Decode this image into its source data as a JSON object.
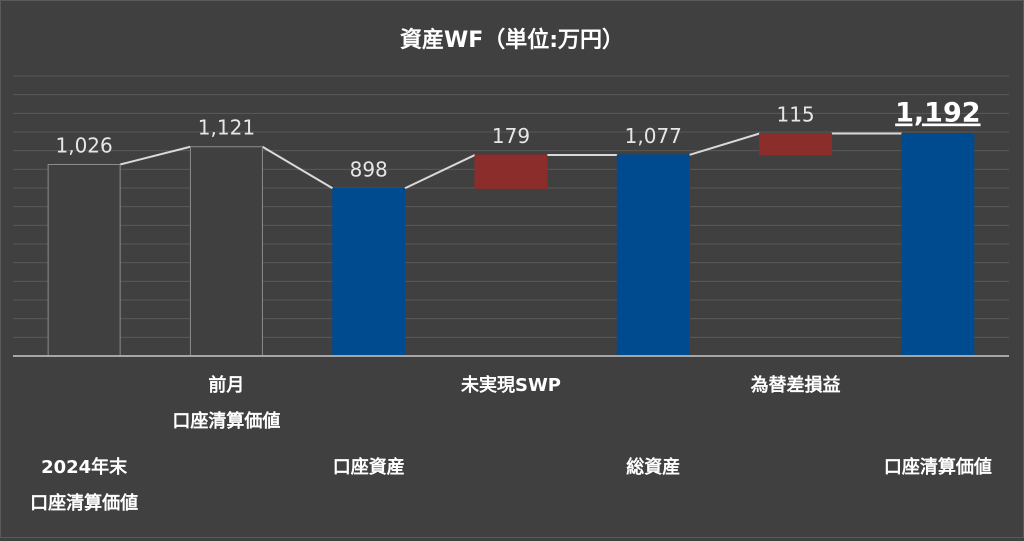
{
  "chart_data": {
    "type": "waterfall",
    "title": "資産WF（単位:万円）",
    "categories": [
      [
        "2024年末",
        "口座清算価値"
      ],
      [
        "前月",
        "口座清算価値"
      ],
      [
        "口座資産"
      ],
      [
        "未実現SWP"
      ],
      [
        "総資産"
      ],
      [
        "為替差損益"
      ],
      [
        "口座清算価値"
      ]
    ],
    "bars": [
      {
        "kind": "total",
        "value": 1026,
        "label": "1,026"
      },
      {
        "kind": "total",
        "value": 1121,
        "label": "1,121"
      },
      {
        "kind": "total",
        "value": 898,
        "label": "898"
      },
      {
        "kind": "increase",
        "value": 179,
        "label": "179"
      },
      {
        "kind": "total",
        "value": 1077,
        "label": "1,077"
      },
      {
        "kind": "increase",
        "value": 115,
        "label": "115"
      },
      {
        "kind": "total",
        "value": 1192,
        "label": "1,192"
      }
    ],
    "bar_styles": [
      "outline",
      "outline",
      "blue",
      "red",
      "blue",
      "red",
      "blue"
    ],
    "emphasized_label_index": 6,
    "colors": {
      "background": "#404040",
      "grid": "#595959",
      "axis": "#a6a6a6",
      "outline_fill": "#404040",
      "outline_stroke": "#8c8c8c",
      "blue": "#004a8f",
      "red": "#8b2d2b",
      "connector": "#d9d9d9",
      "text": "#ffffff",
      "value_text": "#e6e6e6"
    },
    "ylim": [
      0,
      1500
    ],
    "grid": true,
    "legend": "none"
  }
}
